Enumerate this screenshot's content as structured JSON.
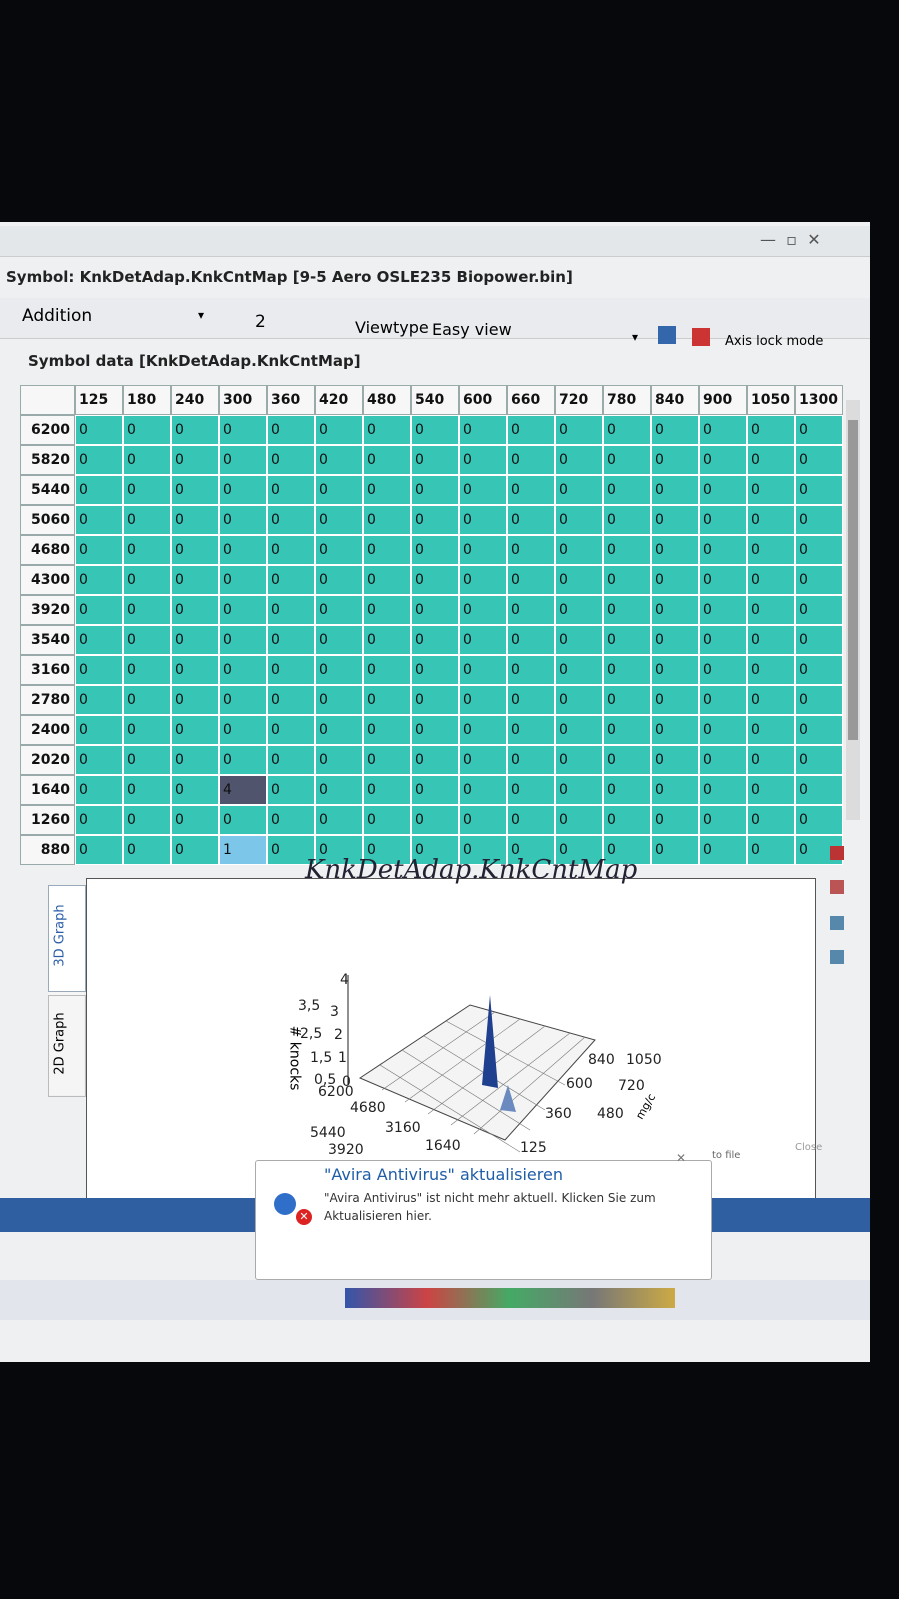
{
  "window": {
    "title": "Symbol: KnkDetAdap.KnkCntMap [9-5 Aero OSLE235 Biopower.bin]"
  },
  "toolbar": {
    "mode": "Addition",
    "value": "2",
    "viewtype_label": "Viewtype",
    "viewtype": "Easy view",
    "axis_lock": "Axis lock mode"
  },
  "symbol_data": {
    "label": "Symbol data [KnkDetAdap.KnkCntMap]",
    "columns": [
      125,
      180,
      240,
      300,
      360,
      420,
      480,
      540,
      600,
      660,
      720,
      780,
      840,
      900,
      1050,
      1300
    ],
    "rows": [
      {
        "label": 6200,
        "values": [
          0,
          0,
          0,
          0,
          0,
          0,
          0,
          0,
          0,
          0,
          0,
          0,
          0,
          0,
          0,
          0
        ]
      },
      {
        "label": 5820,
        "values": [
          0,
          0,
          0,
          0,
          0,
          0,
          0,
          0,
          0,
          0,
          0,
          0,
          0,
          0,
          0,
          0
        ]
      },
      {
        "label": 5440,
        "values": [
          0,
          0,
          0,
          0,
          0,
          0,
          0,
          0,
          0,
          0,
          0,
          0,
          0,
          0,
          0,
          0
        ]
      },
      {
        "label": 5060,
        "values": [
          0,
          0,
          0,
          0,
          0,
          0,
          0,
          0,
          0,
          0,
          0,
          0,
          0,
          0,
          0,
          0
        ]
      },
      {
        "label": 4680,
        "values": [
          0,
          0,
          0,
          0,
          0,
          0,
          0,
          0,
          0,
          0,
          0,
          0,
          0,
          0,
          0,
          0
        ]
      },
      {
        "label": 4300,
        "values": [
          0,
          0,
          0,
          0,
          0,
          0,
          0,
          0,
          0,
          0,
          0,
          0,
          0,
          0,
          0,
          0
        ]
      },
      {
        "label": 3920,
        "values": [
          0,
          0,
          0,
          0,
          0,
          0,
          0,
          0,
          0,
          0,
          0,
          0,
          0,
          0,
          0,
          0
        ]
      },
      {
        "label": 3540,
        "values": [
          0,
          0,
          0,
          0,
          0,
          0,
          0,
          0,
          0,
          0,
          0,
          0,
          0,
          0,
          0,
          0
        ]
      },
      {
        "label": 3160,
        "values": [
          0,
          0,
          0,
          0,
          0,
          0,
          0,
          0,
          0,
          0,
          0,
          0,
          0,
          0,
          0,
          0
        ]
      },
      {
        "label": 2780,
        "values": [
          0,
          0,
          0,
          0,
          0,
          0,
          0,
          0,
          0,
          0,
          0,
          0,
          0,
          0,
          0,
          0
        ]
      },
      {
        "label": 2400,
        "values": [
          0,
          0,
          0,
          0,
          0,
          0,
          0,
          0,
          0,
          0,
          0,
          0,
          0,
          0,
          0,
          0
        ]
      },
      {
        "label": 2020,
        "values": [
          0,
          0,
          0,
          0,
          0,
          0,
          0,
          0,
          0,
          0,
          0,
          0,
          0,
          0,
          0,
          0
        ]
      },
      {
        "label": 1640,
        "values": [
          0,
          0,
          0,
          4,
          0,
          0,
          0,
          0,
          0,
          0,
          0,
          0,
          0,
          0,
          0,
          0
        ]
      },
      {
        "label": 1260,
        "values": [
          0,
          0,
          0,
          0,
          0,
          0,
          0,
          0,
          0,
          0,
          0,
          0,
          0,
          0,
          0,
          0
        ]
      },
      {
        "label": 880,
        "values": [
          0,
          0,
          0,
          1,
          0,
          0,
          0,
          0,
          0,
          0,
          0,
          0,
          0,
          0,
          0,
          0
        ]
      }
    ]
  },
  "graph": {
    "title": "KnkDetAdap.KnkCntMap",
    "tabs": [
      "3D Graph",
      "2D Graph"
    ],
    "z_axis_title": "# knocks",
    "z_ticks": [
      "4",
      "3,5",
      "3",
      "2,5",
      "2",
      "1,5",
      "1",
      "0,5",
      "0"
    ],
    "y_ticks": [
      "6200",
      "5440",
      "4680",
      "3920",
      "3160",
      "1640"
    ],
    "x_ticks": [
      "840",
      "1050",
      "600",
      "720",
      "360",
      "480",
      "125"
    ],
    "x_axis_title": "mg/c"
  },
  "buttons": {
    "save": "to file",
    "close": "Close"
  },
  "notification": {
    "title": "\"Avira Antivirus\" aktualisieren",
    "body": "\"Avira Antivirus\" ist nicht mehr aktuell. Klicken Sie zum Aktualisieren hier."
  }
}
